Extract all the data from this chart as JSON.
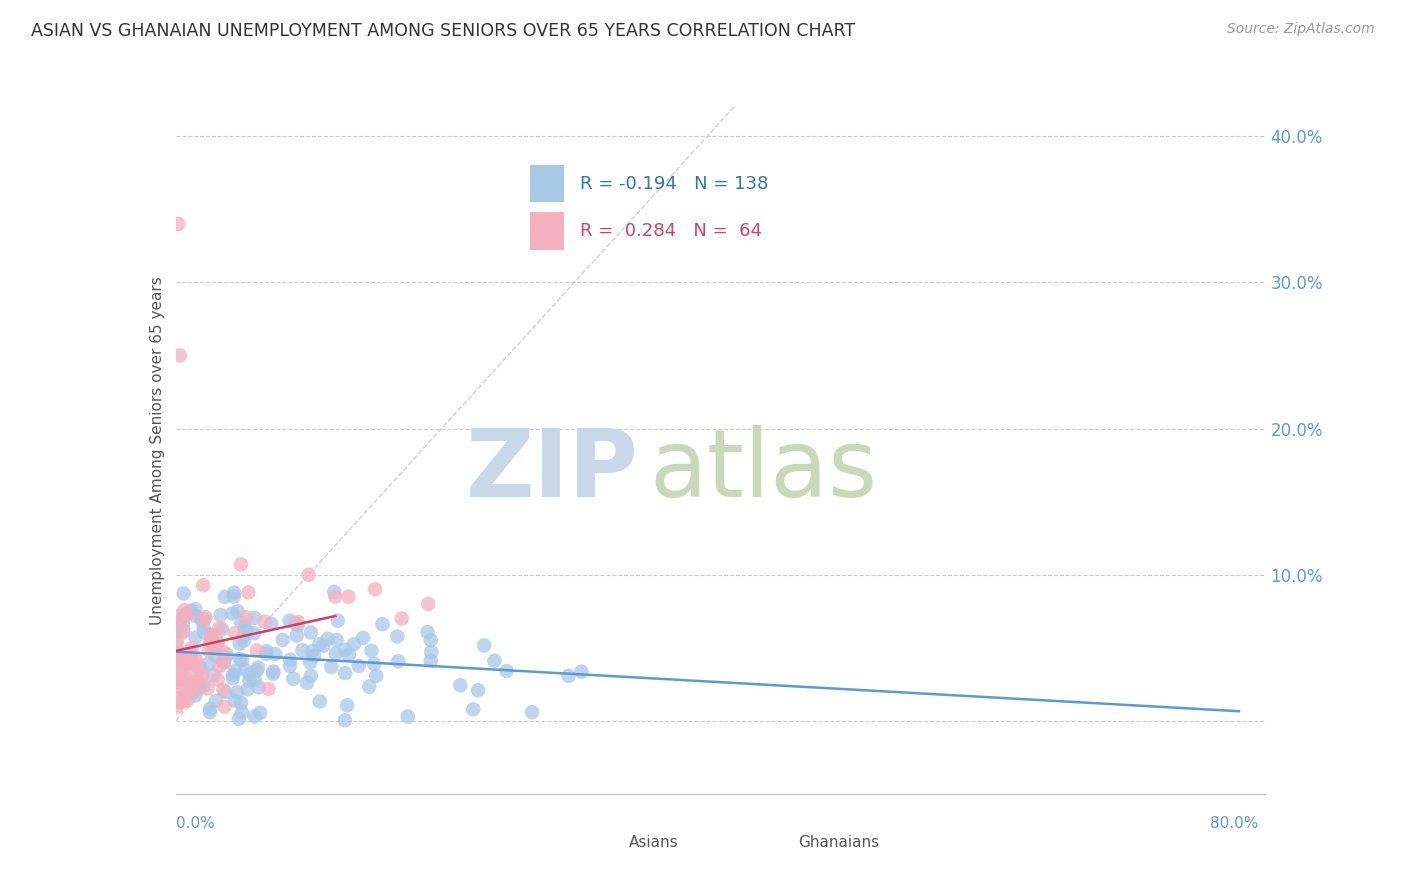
{
  "title": "ASIAN VS GHANAIAN UNEMPLOYMENT AMONG SENIORS OVER 65 YEARS CORRELATION CHART",
  "source": "Source: ZipAtlas.com",
  "ylabel": "Unemployment Among Seniors over 65 years",
  "asian_R": -0.194,
  "asian_N": 138,
  "ghanaian_R": 0.284,
  "ghanaian_N": 64,
  "asian_color": "#a8c8e8",
  "asian_line_color": "#5b9bd5",
  "ghanaian_color": "#f4b0c0",
  "ghanaian_line_color": "#d04060",
  "watermark_zip_color": "#c8d8e8",
  "watermark_atlas_color": "#c8d8b8",
  "background_color": "#ffffff",
  "grid_color": "#cccccc",
  "xlim": [
    0.0,
    0.82
  ],
  "ylim": [
    -0.05,
    0.42
  ],
  "yticks": [
    0.0,
    0.1,
    0.2,
    0.3,
    0.4
  ],
  "ytick_labels": [
    "",
    "10.0%",
    "20.0%",
    "30.0%",
    "40.0%"
  ],
  "title_color": "#333333",
  "source_color": "#999999",
  "ylabel_color": "#555555",
  "tick_color": "#5b9bd5",
  "legend_border_color": "#bbbbbb",
  "legend_text_blue": "#2e75b6",
  "legend_text_pink": "#cc4466",
  "bottom_legend_text_color": "#555555"
}
